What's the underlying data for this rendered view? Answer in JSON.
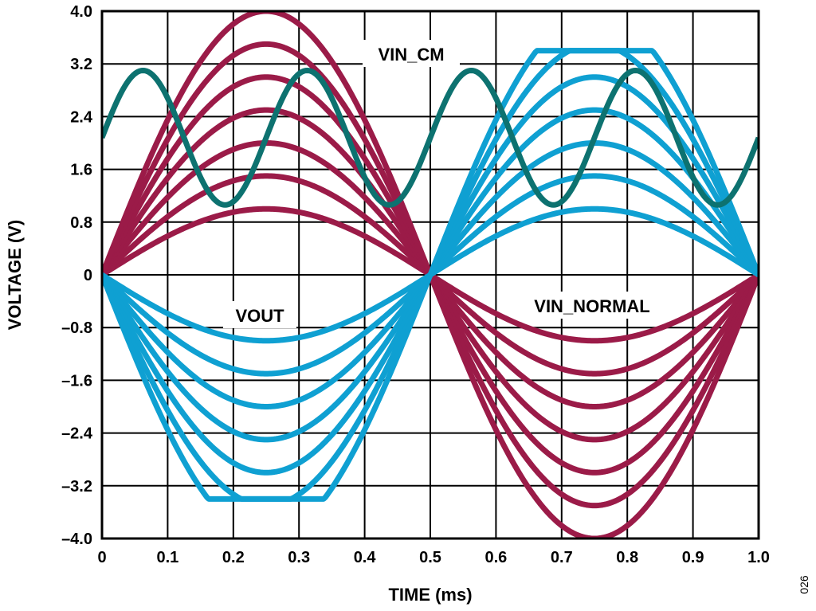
{
  "chart_data": {
    "type": "line",
    "xlabel": "TIME (ms)",
    "ylabel": "VOLTAGE (V)",
    "xlim": [
      0,
      1.0
    ],
    "ylim": [
      -4.0,
      4.0
    ],
    "x_ticks": [
      "0",
      "0.1",
      "0.2",
      "0.3",
      "0.4",
      "0.5",
      "0.6",
      "0.7",
      "0.8",
      "0.9",
      "1.0"
    ],
    "y_ticks": [
      "4.0",
      "3.2",
      "2.4",
      "1.6",
      "0.8",
      "0",
      "–0.8",
      "–1.6",
      "–2.4",
      "–3.2",
      "–4.0"
    ],
    "grid": true,
    "annotations": [
      "VIN_CM",
      "VOUT",
      "VIN_NORMAL"
    ],
    "figure_id": "026",
    "colors": {
      "vin_normal": "#9b1b48",
      "vout": "#0fa0d2",
      "vin_cm": "#0d7270",
      "grid": "#000000"
    },
    "vin_cm": {
      "offset": 2.08,
      "amplitude": 1.02,
      "frequency_khz": 4.0,
      "phase_cycles": 0.0
    },
    "vin_normal_amplitudes": [
      1.0,
      1.5,
      2.0,
      2.5,
      3.0,
      3.5,
      4.0
    ],
    "vout_amplitudes": [
      1.0,
      1.5,
      2.0,
      2.5,
      3.0,
      3.5,
      4.0
    ],
    "vout_clip_level": 3.4,
    "series": [
      {
        "name": "VIN_CM",
        "x": [
          0,
          0.0625,
          0.125,
          0.1875,
          0.25,
          0.3125,
          0.375,
          0.4375,
          0.5,
          0.5625,
          0.625,
          0.6875,
          0.75,
          0.8125,
          0.875,
          0.9375,
          1.0
        ],
        "values": [
          2.08,
          3.1,
          2.08,
          1.06,
          2.08,
          3.1,
          2.08,
          1.06,
          2.08,
          3.1,
          2.08,
          1.06,
          2.08,
          3.1,
          2.08,
          1.06,
          2.08
        ]
      },
      {
        "name": "VIN_NORMAL",
        "x": [
          0,
          0.25,
          0.5,
          0.75,
          1.0
        ],
        "values": [
          0,
          4.0,
          0,
          -4.0,
          0
        ]
      },
      {
        "name": "VOUT",
        "x": [
          0,
          0.25,
          0.5,
          0.75,
          1.0
        ],
        "values": [
          0,
          -3.4,
          0,
          3.4,
          0
        ]
      }
    ]
  }
}
